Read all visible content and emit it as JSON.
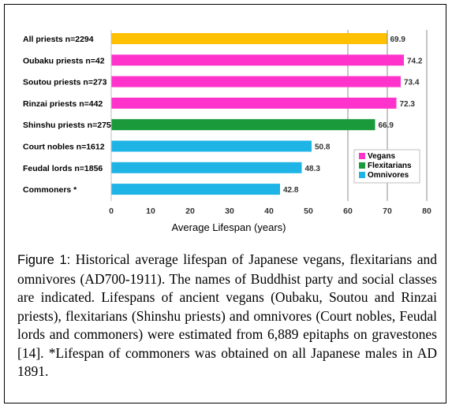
{
  "chart_data": {
    "type": "bar",
    "orientation": "horizontal",
    "categories": [
      "All priests n=2294",
      "Oubaku priests n=42",
      "Soutou priests n=273",
      "Rinzai priests n=442",
      "Shinshu priests n=275",
      "Court nobles n=1612",
      "Feudal lords n=1856",
      "Commoners *"
    ],
    "values": [
      69.9,
      74.2,
      73.4,
      72.3,
      66.9,
      50.8,
      48.3,
      42.8
    ],
    "value_labels": [
      "69.9",
      "74.2",
      "73.4",
      "72.3",
      "66.9",
      "50.8",
      "48.3",
      "42.8"
    ],
    "bar_groups": [
      "all",
      "Vegans",
      "Vegans",
      "Vegans",
      "Flexitarians",
      "Omnivores",
      "Omnivores",
      "Omnivores"
    ],
    "xlabel": "Average Lifespan (years)",
    "ylabel": "",
    "xlim": [
      0,
      80
    ],
    "xticks": [
      "0",
      "10",
      "20",
      "30",
      "40",
      "50",
      "60",
      "70",
      "80"
    ],
    "grid": "vertical lines at 60, 70, 80",
    "legend": {
      "placement": "right",
      "entries": [
        {
          "name": "Vegans",
          "color": "#ff33cc"
        },
        {
          "name": "Flexitarians",
          "color": "#1a9a3a"
        },
        {
          "name": "Omnivores",
          "color": "#1fb4e6"
        }
      ]
    },
    "colors": {
      "all": "#ffc000",
      "Vegans": "#ff33cc",
      "Flexitarians": "#1a9a3a",
      "Omnivores": "#1fb4e6"
    }
  },
  "caption": {
    "label": "Figure 1:",
    "text": " Historical average lifespan of Japanese vegans, flexitarians and omnivores (AD700-1911). The names of Buddhist party and social classes are indicated. Lifespans of ancient vegans (Oubaku, Soutou and Rinzai priests), flexitarians (Shinshu priests) and omnivores (Court nobles, Feudal lords and commoners) were estimated from 6,889 epitaphs on gravestones [14]. *Lifespan of commoners was obtained on all Japanese males in AD 1891."
  }
}
